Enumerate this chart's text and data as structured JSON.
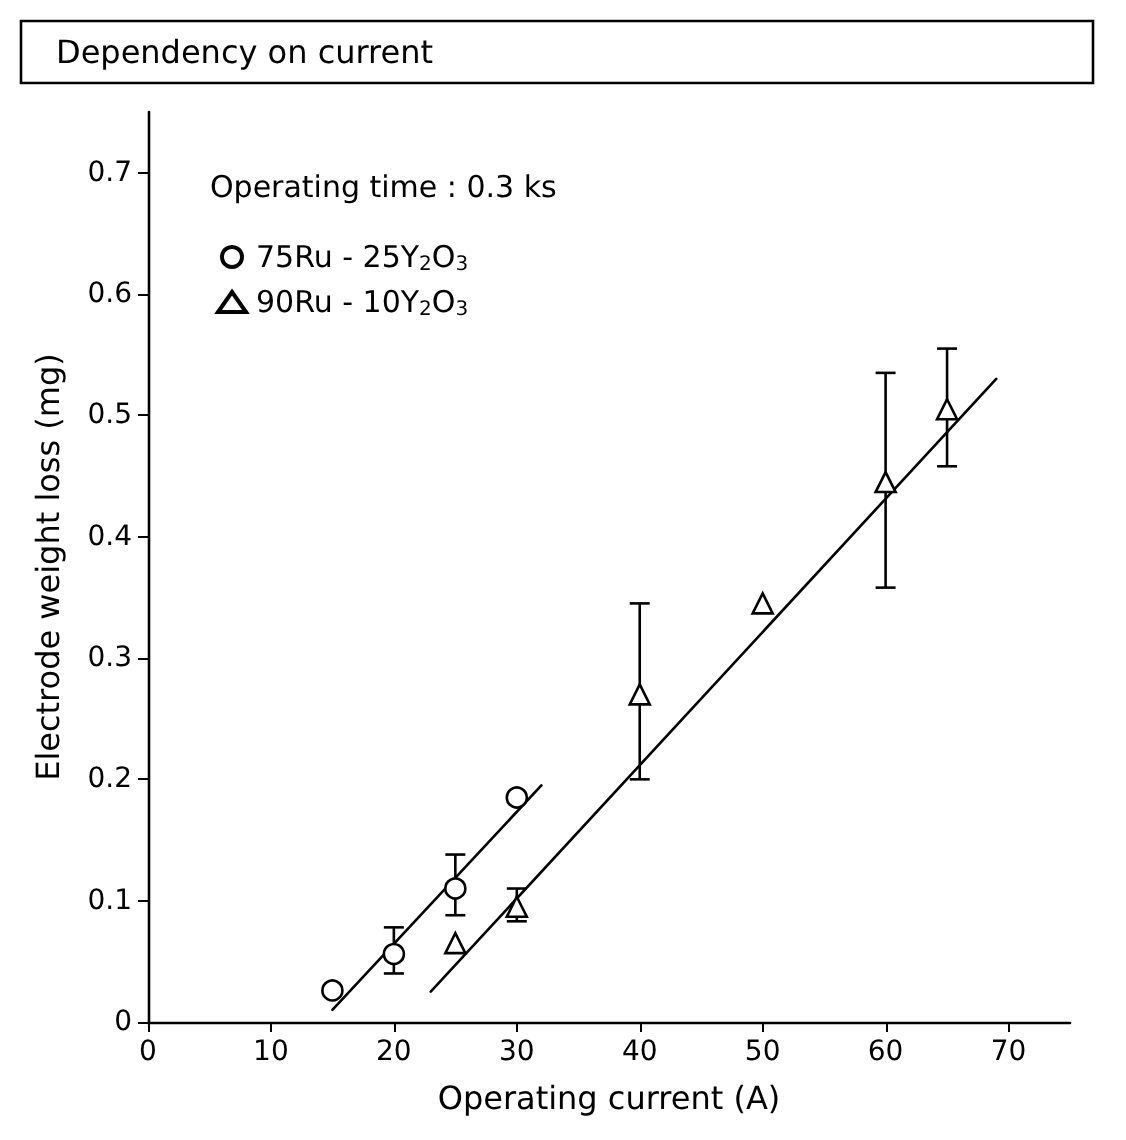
{
  "chart_data": {
    "type": "scatter",
    "title": "Dependency on current",
    "xlabel": "Operating current (A)",
    "ylabel": "Electrode weight loss (mg)",
    "annotations": [
      "Operating time : 0.3 ks"
    ],
    "series": [
      {
        "name": "75Ru - 25Y$_{2}$O$_{3}$",
        "color": "#000000",
        "marker": "circle",
        "x": [
          15,
          20,
          25,
          30
        ],
        "values": [
          0.026,
          0.056,
          0.11,
          0.185
        ],
        "errors": [
          null,
          [
            0.04,
            0.078
          ],
          [
            0.088,
            0.138
          ],
          null
        ]
      },
      {
        "name": "90Ru - 10Y$_{2}$O$_{3}$",
        "color": "#000000",
        "marker": "triangle",
        "x": [
          25,
          30,
          40,
          50,
          60,
          65
        ],
        "values": [
          0.065,
          0.095,
          0.27,
          0.345,
          0.445,
          0.505
        ],
        "errors": [
          null,
          [
            0.083,
            0.11
          ],
          [
            0.2,
            0.345
          ],
          null,
          [
            0.358,
            0.535
          ],
          [
            0.458,
            0.555
          ]
        ]
      },
      {
        "type": "line",
        "color": "#000000",
        "marker": "none",
        "x": [
          15,
          32
        ],
        "values": [
          0.01,
          0.195
        ]
      },
      {
        "type": "line",
        "color": "#000000",
        "marker": "none",
        "x": [
          23,
          69
        ],
        "values": [
          0.025,
          0.53
        ]
      }
    ],
    "xlim": [
      0,
      75
    ],
    "xticks": [
      0,
      10,
      20,
      30,
      40,
      50,
      60,
      70
    ],
    "ylim": [
      0,
      0.75
    ],
    "yticks": [
      0,
      0.1,
      0.2,
      0.3,
      0.4,
      0.5,
      0.6,
      0.7
    ],
    "legend": "top left",
    "grid": false
  }
}
